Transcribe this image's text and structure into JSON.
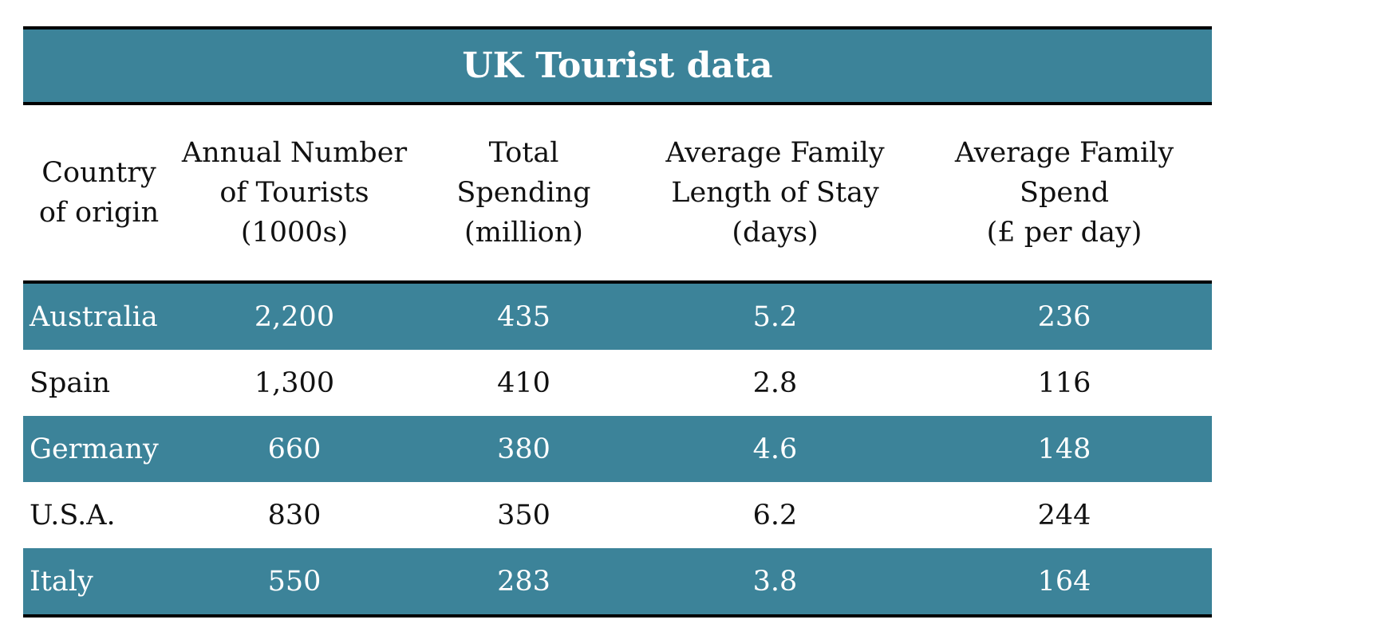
{
  "chart_data": {
    "type": "table",
    "title": "UK Tourist data",
    "columns": [
      [
        "Country",
        "of origin"
      ],
      [
        "Annual Number",
        "of Tourists",
        "(1000s)"
      ],
      [
        "Total Spending",
        "(million)"
      ],
      [
        "Average Family",
        "Length of Stay",
        "(days)"
      ],
      [
        "Average Family",
        "Spend",
        "(£ per day)"
      ]
    ],
    "rows": [
      [
        "Australia",
        "2,200",
        "435",
        "5.2",
        "236"
      ],
      [
        "Spain",
        "1,300",
        "410",
        "2.8",
        "116"
      ],
      [
        "Germany",
        "660",
        "380",
        "4.6",
        "148"
      ],
      [
        "U.S.A.",
        "830",
        "350",
        "6.2",
        "244"
      ],
      [
        "Italy",
        "550",
        "283",
        "3.8",
        "164"
      ]
    ],
    "colors": {
      "band": "#3c8399",
      "band_text": "#ffffff",
      "plain_text": "#111111",
      "rule": "#000000"
    }
  }
}
